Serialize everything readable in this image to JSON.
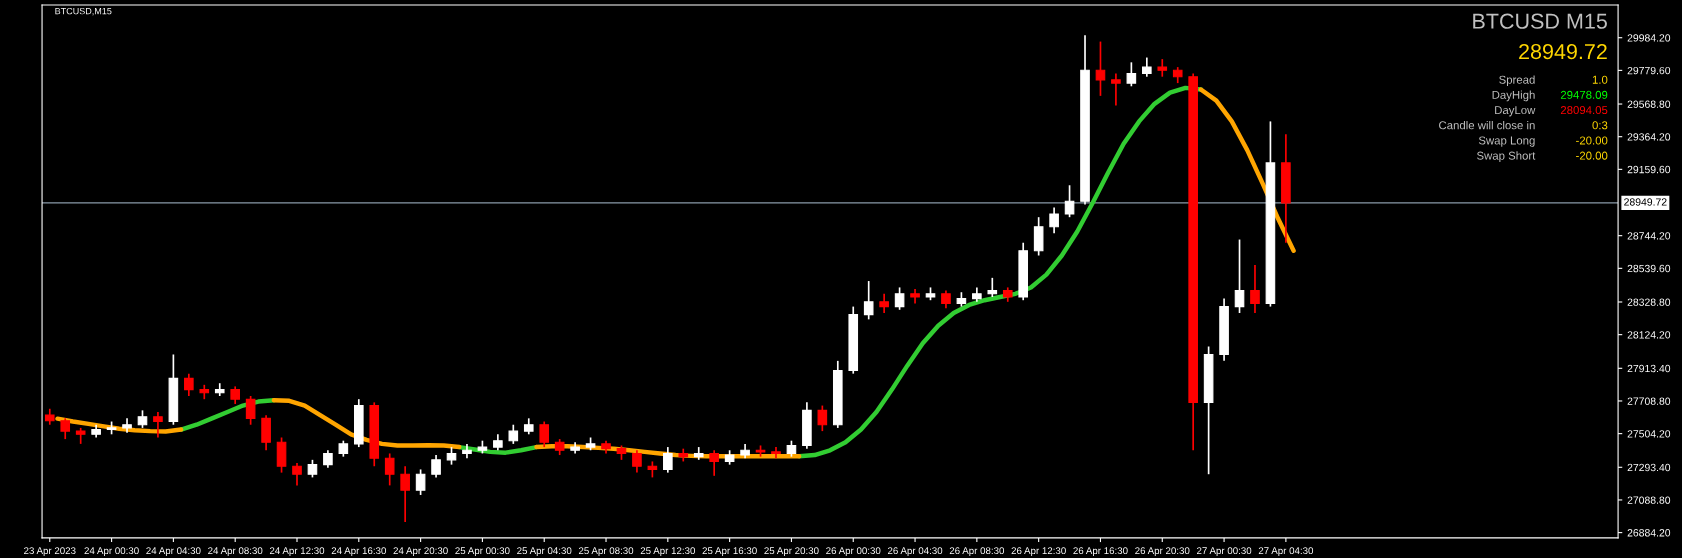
{
  "chart_data": {
    "type": "candlestick",
    "title": "BTCUSD,M15",
    "x": [
      "2023-04-23T20:30",
      "2023-04-23T21:30",
      "2023-04-23T22:30",
      "2023-04-23T23:30",
      "2023-04-24T00:30",
      "2023-04-24T01:30",
      "2023-04-24T02:30",
      "2023-04-24T03:30",
      "2023-04-24T04:30",
      "2023-04-24T05:30",
      "2023-04-24T06:30",
      "2023-04-24T07:30",
      "2023-04-24T08:30",
      "2023-04-24T09:30",
      "2023-04-24T10:30",
      "2023-04-24T11:30",
      "2023-04-24T12:30",
      "2023-04-24T13:30",
      "2023-04-24T14:30",
      "2023-04-24T15:30",
      "2023-04-24T16:30",
      "2023-04-24T17:30",
      "2023-04-24T18:30",
      "2023-04-24T19:30",
      "2023-04-24T20:30",
      "2023-04-24T21:30",
      "2023-04-24T22:30",
      "2023-04-24T23:30",
      "2023-04-25T00:30",
      "2023-04-25T01:30",
      "2023-04-25T02:30",
      "2023-04-25T03:30",
      "2023-04-25T04:30",
      "2023-04-25T05:30",
      "2023-04-25T06:30",
      "2023-04-25T07:30",
      "2023-04-25T08:30",
      "2023-04-25T09:30",
      "2023-04-25T10:30",
      "2023-04-25T11:30",
      "2023-04-25T12:30",
      "2023-04-25T13:30",
      "2023-04-25T14:30",
      "2023-04-25T15:30",
      "2023-04-25T16:30",
      "2023-04-25T17:30",
      "2023-04-25T18:30",
      "2023-04-25T19:30",
      "2023-04-25T20:30",
      "2023-04-25T21:30",
      "2023-04-25T22:30",
      "2023-04-25T23:30",
      "2023-04-26T00:30",
      "2023-04-26T01:30",
      "2023-04-26T02:30",
      "2023-04-26T03:30",
      "2023-04-26T04:30",
      "2023-04-26T05:30",
      "2023-04-26T06:30",
      "2023-04-26T07:30",
      "2023-04-26T08:30",
      "2023-04-26T09:30",
      "2023-04-26T10:30",
      "2023-04-26T11:30",
      "2023-04-26T12:30",
      "2023-04-26T13:30",
      "2023-04-26T14:30",
      "2023-04-26T15:30",
      "2023-04-26T16:30",
      "2023-04-26T17:30",
      "2023-04-26T18:30",
      "2023-04-26T19:30",
      "2023-04-26T20:30",
      "2023-04-26T21:30",
      "2023-04-26T22:30",
      "2023-04-26T23:30",
      "2023-04-27T00:30",
      "2023-04-27T01:30",
      "2023-04-27T02:30",
      "2023-04-27T03:30",
      "2023-04-27T04:30"
    ],
    "ohlc": [
      [
        27620,
        27660,
        27560,
        27585
      ],
      [
        27585,
        27600,
        27470,
        27520
      ],
      [
        27520,
        27540,
        27440,
        27500
      ],
      [
        27500,
        27560,
        27480,
        27530
      ],
      [
        27530,
        27580,
        27500,
        27540
      ],
      [
        27540,
        27600,
        27510,
        27560
      ],
      [
        27560,
        27650,
        27540,
        27610
      ],
      [
        27610,
        27640,
        27480,
        27580
      ],
      [
        27580,
        28000,
        27560,
        27850
      ],
      [
        27850,
        27880,
        27740,
        27780
      ],
      [
        27780,
        27810,
        27720,
        27760
      ],
      [
        27760,
        27820,
        27740,
        27780
      ],
      [
        27780,
        27800,
        27690,
        27720
      ],
      [
        27720,
        27740,
        27560,
        27600
      ],
      [
        27600,
        27620,
        27400,
        27450
      ],
      [
        27450,
        27480,
        27260,
        27300
      ],
      [
        27300,
        27320,
        27180,
        27250
      ],
      [
        27250,
        27340,
        27230,
        27310
      ],
      [
        27310,
        27400,
        27290,
        27380
      ],
      [
        27380,
        27460,
        27360,
        27440
      ],
      [
        27440,
        27720,
        27420,
        27680
      ],
      [
        27680,
        27700,
        27300,
        27350
      ],
      [
        27350,
        27380,
        27180,
        27250
      ],
      [
        27250,
        27300,
        26950,
        27150
      ],
      [
        27150,
        27280,
        27120,
        27250
      ],
      [
        27250,
        27370,
        27230,
        27340
      ],
      [
        27340,
        27420,
        27310,
        27380
      ],
      [
        27380,
        27440,
        27350,
        27400
      ],
      [
        27400,
        27460,
        27380,
        27420
      ],
      [
        27420,
        27500,
        27400,
        27460
      ],
      [
        27460,
        27560,
        27440,
        27520
      ],
      [
        27520,
        27600,
        27500,
        27560
      ],
      [
        27560,
        27580,
        27420,
        27450
      ],
      [
        27450,
        27470,
        27370,
        27400
      ],
      [
        27400,
        27450,
        27380,
        27420
      ],
      [
        27420,
        27480,
        27400,
        27440
      ],
      [
        27440,
        27460,
        27380,
        27410
      ],
      [
        27410,
        27430,
        27340,
        27380
      ],
      [
        27380,
        27400,
        27260,
        27300
      ],
      [
        27300,
        27330,
        27230,
        27280
      ],
      [
        27280,
        27420,
        27260,
        27380
      ],
      [
        27380,
        27410,
        27330,
        27360
      ],
      [
        27360,
        27420,
        27340,
        27380
      ],
      [
        27380,
        27400,
        27240,
        27330
      ],
      [
        27330,
        27400,
        27310,
        27370
      ],
      [
        27370,
        27440,
        27350,
        27400
      ],
      [
        27400,
        27430,
        27360,
        27390
      ],
      [
        27390,
        27420,
        27350,
        27380
      ],
      [
        27380,
        27460,
        27360,
        27430
      ],
      [
        27430,
        27700,
        27410,
        27650
      ],
      [
        27650,
        27680,
        27520,
        27560
      ],
      [
        27560,
        27960,
        27540,
        27900
      ],
      [
        27900,
        28300,
        27880,
        28250
      ],
      [
        28250,
        28460,
        28220,
        28330
      ],
      [
        28330,
        28380,
        28260,
        28300
      ],
      [
        28300,
        28420,
        28280,
        28380
      ],
      [
        28380,
        28410,
        28320,
        28360
      ],
      [
        28360,
        28420,
        28340,
        28380
      ],
      [
        28380,
        28400,
        28290,
        28320
      ],
      [
        28320,
        28390,
        28300,
        28350
      ],
      [
        28350,
        28420,
        28330,
        28380
      ],
      [
        28380,
        28480,
        28360,
        28400
      ],
      [
        28400,
        28420,
        28330,
        28360
      ],
      [
        28360,
        28700,
        28340,
        28650
      ],
      [
        28650,
        28860,
        28620,
        28800
      ],
      [
        28800,
        28920,
        28760,
        28880
      ],
      [
        28880,
        29060,
        28860,
        28960
      ],
      [
        28960,
        30000,
        28940,
        29780
      ],
      [
        29780,
        29960,
        29620,
        29720
      ],
      [
        29720,
        29760,
        29560,
        29700
      ],
      [
        29700,
        29830,
        29680,
        29760
      ],
      [
        29760,
        29860,
        29740,
        29800
      ],
      [
        29800,
        29850,
        29740,
        29780
      ],
      [
        29780,
        29800,
        29700,
        29740
      ],
      [
        29740,
        29760,
        27400,
        27700
      ],
      [
        27700,
        28050,
        27250,
        28000
      ],
      [
        28000,
        28350,
        27960,
        28300
      ],
      [
        28300,
        28720,
        28260,
        28400
      ],
      [
        28400,
        28560,
        28260,
        28320
      ],
      [
        28320,
        29460,
        28300,
        29200
      ],
      [
        29200,
        29380,
        28700,
        28950
      ]
    ],
    "series": [
      {
        "type": "line",
        "color": "#32cd32",
        "x": [
          "2023-04-24T05:00",
          "2023-04-24T06:00",
          "2023-04-24T07:00",
          "2023-04-24T08:00",
          "2023-04-24T09:00",
          "2023-04-24T10:00",
          "2023-04-24T11:00",
          "2023-04-24T12:00",
          "2023-04-24T13:00",
          "2023-04-24T14:00",
          "2023-04-24T15:00",
          "2023-04-24T16:00",
          "2023-04-24T17:00",
          "2023-04-24T18:00",
          "2023-04-24T19:00",
          "2023-04-24T20:00",
          "2023-04-24T21:00",
          "2023-04-24T22:00",
          "2023-04-24T23:00",
          "2023-04-25T00:00",
          "2023-04-25T01:00",
          "2023-04-25T02:00",
          "2023-04-25T03:00",
          "2023-04-25T04:00",
          "2023-04-25T05:00",
          "2023-04-25T06:00",
          "2023-04-25T07:00",
          "2023-04-25T08:00",
          "2023-04-25T09:00",
          "2023-04-25T10:00",
          "2023-04-25T11:00",
          "2023-04-25T12:00",
          "2023-04-25T13:00",
          "2023-04-25T14:00",
          "2023-04-25T15:00",
          "2023-04-25T16:00",
          "2023-04-25T17:00",
          "2023-04-25T18:00",
          "2023-04-25T19:00",
          "2023-04-25T20:00",
          "2023-04-25T21:00",
          "2023-04-25T22:00",
          "2023-04-25T23:00",
          "2023-04-26T00:00",
          "2023-04-26T01:00",
          "2023-04-26T02:00",
          "2023-04-26T03:00",
          "2023-04-26T04:00",
          "2023-04-26T05:00",
          "2023-04-26T06:00",
          "2023-04-26T07:00",
          "2023-04-26T08:00",
          "2023-04-26T09:00",
          "2023-04-26T10:00",
          "2023-04-26T11:00",
          "2023-04-26T12:00",
          "2023-04-26T13:00",
          "2023-04-26T14:00",
          "2023-04-26T15:00",
          "2023-04-26T16:00",
          "2023-04-26T17:00",
          "2023-04-26T18:00",
          "2023-04-26T19:00",
          "2023-04-26T20:00",
          "2023-04-26T21:00",
          "2023-04-26T22:00",
          "2023-04-26T23:00"
        ],
        "values": [
          27530,
          27560,
          27600,
          27640,
          27680,
          27705,
          27713,
          null,
          null,
          null,
          null,
          null,
          null,
          null,
          null,
          null,
          null,
          null,
          27420,
          27405,
          27390,
          27385,
          27400,
          27420,
          null,
          null,
          null,
          null,
          null,
          null,
          null,
          null,
          null,
          null,
          null,
          null,
          null,
          null,
          null,
          null,
          27363,
          27370,
          27400,
          27450,
          27530,
          27640,
          27780,
          27930,
          28070,
          28180,
          28260,
          28310,
          28340,
          28360,
          28380,
          28420,
          28500,
          28620,
          28770,
          28950,
          29140,
          29320,
          29460,
          29570,
          29640,
          29670,
          29660
        ]
      },
      {
        "type": "line",
        "color": "#ffa500",
        "x": [
          "2023-04-23T21:00",
          "2023-04-23T22:00",
          "2023-04-23T23:00",
          "2023-04-24T00:00",
          "2023-04-24T01:00",
          "2023-04-24T02:00",
          "2023-04-24T03:00",
          "2023-04-24T04:00",
          "2023-04-24T05:00",
          "2023-04-24T06:00",
          "2023-04-24T07:00",
          "2023-04-24T08:00",
          "2023-04-24T09:00",
          "2023-04-24T10:00",
          "2023-04-24T11:00",
          "2023-04-24T12:00",
          "2023-04-24T13:00",
          "2023-04-24T14:00",
          "2023-04-24T15:00",
          "2023-04-24T16:00",
          "2023-04-24T17:00",
          "2023-04-24T18:00",
          "2023-04-24T19:00",
          "2023-04-24T20:00",
          "2023-04-24T21:00",
          "2023-04-24T22:00",
          "2023-04-24T23:00",
          "2023-04-25T00:00",
          "2023-04-25T01:00",
          "2023-04-25T02:00",
          "2023-04-25T03:00",
          "2023-04-25T04:00",
          "2023-04-25T05:00",
          "2023-04-25T06:00",
          "2023-04-25T07:00",
          "2023-04-25T08:00",
          "2023-04-25T09:00",
          "2023-04-25T10:00",
          "2023-04-25T11:00",
          "2023-04-25T12:00",
          "2023-04-25T13:00",
          "2023-04-25T14:00",
          "2023-04-25T15:00",
          "2023-04-25T16:00",
          "2023-04-25T17:00",
          "2023-04-25T18:00",
          "2023-04-25T19:00",
          "2023-04-25T20:00",
          "2023-04-25T21:00",
          "2023-04-25T22:00",
          "2023-04-25T23:00",
          "2023-04-26T00:00",
          "2023-04-26T01:00",
          "2023-04-26T02:00",
          "2023-04-26T03:00",
          "2023-04-26T04:00",
          "2023-04-26T05:00",
          "2023-04-26T06:00",
          "2023-04-26T07:00",
          "2023-04-26T08:00",
          "2023-04-26T09:00",
          "2023-04-26T10:00",
          "2023-04-26T11:00",
          "2023-04-26T12:00",
          "2023-04-26T13:00",
          "2023-04-26T14:00",
          "2023-04-26T15:00",
          "2023-04-26T16:00",
          "2023-04-26T17:00",
          "2023-04-26T18:00",
          "2023-04-26T19:00",
          "2023-04-26T20:00",
          "2023-04-26T21:00",
          "2023-04-26T22:00",
          "2023-04-26T23:00",
          "2023-04-27T00:00",
          "2023-04-27T01:00",
          "2023-04-27T02:00",
          "2023-04-27T03:00",
          "2023-04-27T04:00",
          "2023-04-27T05:00"
        ],
        "values": [
          27598,
          27580,
          27565,
          27550,
          27535,
          27525,
          27520,
          27518,
          27530,
          null,
          null,
          null,
          null,
          null,
          27713,
          27710,
          27680,
          27620,
          27560,
          27500,
          27465,
          27440,
          27430,
          27430,
          27432,
          27430,
          27420,
          null,
          null,
          null,
          null,
          27420,
          27425,
          27425,
          27420,
          27415,
          27410,
          27400,
          27390,
          27380,
          27370,
          27365,
          27362,
          27362,
          27363,
          27363,
          27363,
          27363,
          27363,
          null,
          null,
          null,
          null,
          null,
          null,
          null,
          null,
          null,
          null,
          null,
          null,
          null,
          null,
          null,
          null,
          null,
          null,
          null,
          null,
          null,
          null,
          null,
          null,
          null,
          29660,
          29590,
          29460,
          29280,
          29070,
          28850,
          28650
        ]
      }
    ],
    "colors": [
      "#ff0000",
      "#ff0000",
      "#ff0000",
      "#ffffff",
      "#ffffff",
      "#ffffff",
      "#ffffff",
      "#ff0000",
      "#ffffff",
      "#ff0000",
      "#ff0000",
      "#ffffff",
      "#ff0000",
      "#ff0000",
      "#ff0000",
      "#ff0000",
      "#ff0000",
      "#ffffff",
      "#ffffff",
      "#ffffff",
      "#ffffff",
      "#ff0000",
      "#ff0000",
      "#ff0000",
      "#ffffff",
      "#ffffff",
      "#ffffff",
      "#ffffff",
      "#ffffff",
      "#ffffff",
      "#ffffff",
      "#ffffff",
      "#ff0000",
      "#ff0000",
      "#ffffff",
      "#ffffff",
      "#ff0000",
      "#ff0000",
      "#ff0000",
      "#ff0000",
      "#ffffff",
      "#ff0000",
      "#ffffff",
      "#ff0000",
      "#ffffff",
      "#ffffff",
      "#ff0000",
      "#ff0000",
      "#ffffff",
      "#ffffff",
      "#ff0000",
      "#ffffff",
      "#ffffff",
      "#ffffff",
      "#ff0000",
      "#ffffff",
      "#ff0000",
      "#ffffff",
      "#ff0000",
      "#ffffff",
      "#ffffff",
      "#ffffff",
      "#ff0000",
      "#ffffff",
      "#ffffff",
      "#ffffff",
      "#ffffff",
      "#ffffff",
      "#ff0000",
      "#ff0000",
      "#ffffff",
      "#ffffff",
      "#ff0000",
      "#ff0000",
      "#ff0000",
      "#ffffff",
      "#ffffff",
      "#ffffff",
      "#ff0000",
      "#ffffff",
      "#ff0000"
    ],
    "xlim": [
      "2023-04-23T20:00",
      "2023-04-28T02:00"
    ],
    "xticks": [
      {
        "value": "2023-04-23T20:30",
        "label": "23 Apr 2023"
      },
      {
        "value": "2023-04-24T00:30",
        "label": "24 Apr 00:30"
      },
      {
        "value": "2023-04-24T04:30",
        "label": "24 Apr 04:30"
      },
      {
        "value": "2023-04-24T08:30",
        "label": "24 Apr 08:30"
      },
      {
        "value": "2023-04-24T12:30",
        "label": "24 Apr 12:30"
      },
      {
        "value": "2023-04-24T16:30",
        "label": "24 Apr 16:30"
      },
      {
        "value": "2023-04-24T20:30",
        "label": "24 Apr 20:30"
      },
      {
        "value": "2023-04-25T00:30",
        "label": "25 Apr 00:30"
      },
      {
        "value": "2023-04-25T04:30",
        "label": "25 Apr 04:30"
      },
      {
        "value": "2023-04-25T08:30",
        "label": "25 Apr 08:30"
      },
      {
        "value": "2023-04-25T12:30",
        "label": "25 Apr 12:30"
      },
      {
        "value": "2023-04-25T16:30",
        "label": "25 Apr 16:30"
      },
      {
        "value": "2023-04-25T20:30",
        "label": "25 Apr 20:30"
      },
      {
        "value": "2023-04-26T00:30",
        "label": "26 Apr 00:30"
      },
      {
        "value": "2023-04-26T04:30",
        "label": "26 Apr 04:30"
      },
      {
        "value": "2023-04-26T08:30",
        "label": "26 Apr 08:30"
      },
      {
        "value": "2023-04-26T12:30",
        "label": "26 Apr 12:30"
      },
      {
        "value": "2023-04-26T16:30",
        "label": "26 Apr 16:30"
      },
      {
        "value": "2023-04-26T20:30",
        "label": "26 Apr 20:30"
      },
      {
        "value": "2023-04-27T00:30",
        "label": "27 Apr 00:30"
      },
      {
        "value": "2023-04-27T04:30",
        "label": "27 Apr 04:30"
      }
    ],
    "ylim": [
      26851,
      30189
    ],
    "yticks": [
      {
        "value": 26884.2,
        "label": "26884.20"
      },
      {
        "value": 27088.8,
        "label": "27088.80"
      },
      {
        "value": 27293.4,
        "label": "27293.40"
      },
      {
        "value": 27504.2,
        "label": "27504.20"
      },
      {
        "value": 27708.8,
        "label": "27708.80"
      },
      {
        "value": 27913.4,
        "label": "27913.40"
      },
      {
        "value": 28124.2,
        "label": "28124.20"
      },
      {
        "value": 28328.8,
        "label": "28328.80"
      },
      {
        "value": 28539.6,
        "label": "28539.60"
      },
      {
        "value": 28744.2,
        "label": "28744.20"
      },
      {
        "value": 29159.6,
        "label": "29159.60"
      },
      {
        "value": 29364.2,
        "label": "29364.20"
      },
      {
        "value": 29568.8,
        "label": "29568.80"
      },
      {
        "value": 29779.6,
        "label": "29779.60"
      },
      {
        "value": 29984.2,
        "label": "29984.20"
      }
    ],
    "ref_lines": [
      {
        "axis": "y",
        "value": 28949.72,
        "label": "28949.72",
        "color": "#8a9aa8"
      }
    ],
    "annotations": [
      "BTCUSD M15",
      "28949.72",
      "Spread",
      "1.0",
      "DayHigh",
      "29478.09",
      "DayLow",
      "28094.05",
      "Candle will close in",
      "0:3",
      "Swap Long",
      "-20.00",
      "Swap Short",
      "-20.00"
    ],
    "grid": false
  }
}
